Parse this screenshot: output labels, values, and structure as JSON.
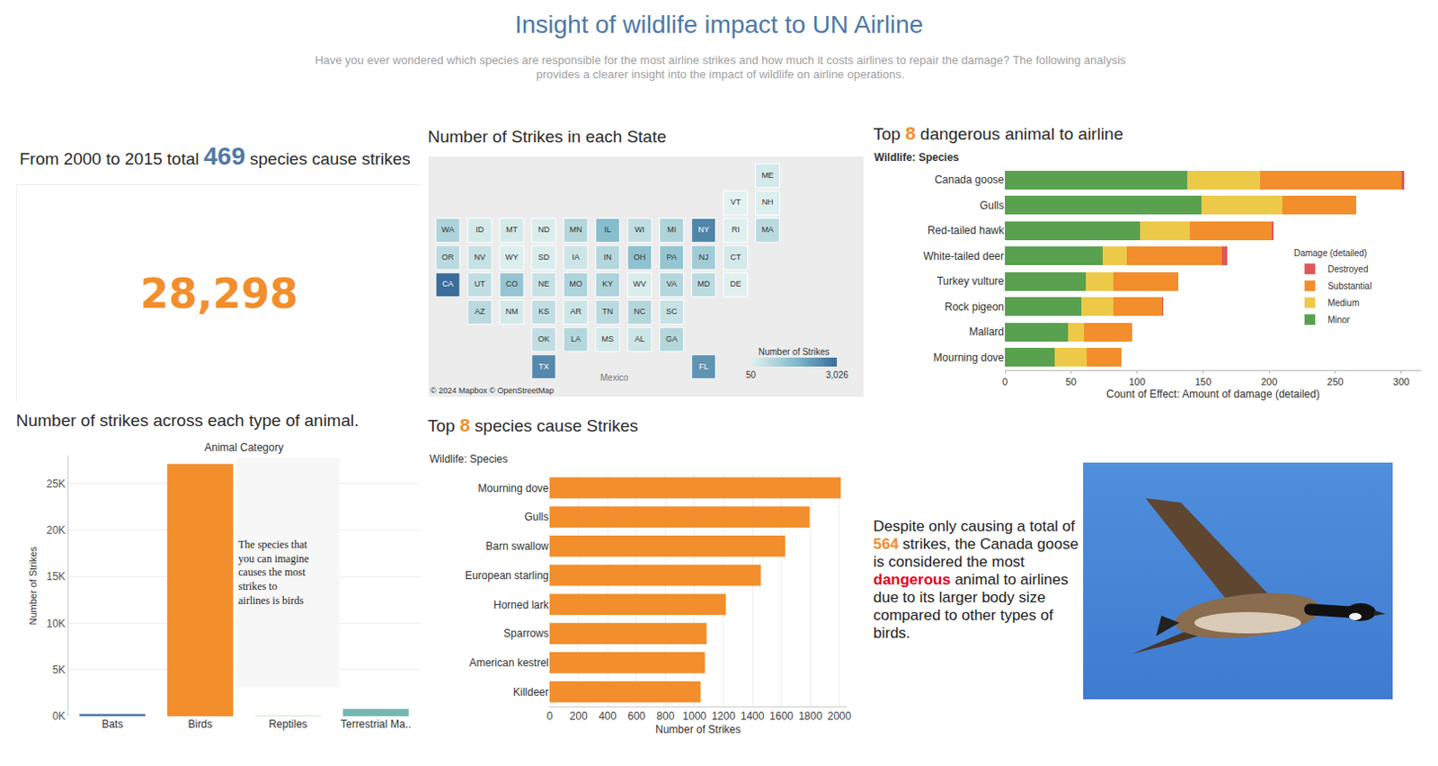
{
  "header": {
    "title": "Insight of wildlife impact to UN Airline",
    "subtitle": "Have you ever wondered which species are responsible for the most airline strikes and how much it costs airlines to repair the damage? The following analysis provides a clearer insight into the impact of wildlife on airline operations."
  },
  "kpi": {
    "title_before": "From 2000 to 2015 total",
    "species": 469,
    "title_after": "species cause strikes",
    "value": {
      "value": 28298,
      "label": "28,298"
    }
  },
  "callout": {
    "text_before": "Despite only causing a total of",
    "strikes": 564,
    "text_middle": "strikes, the Canada goose is considered the most",
    "emphasis": "dangerous",
    "text_after": "animal to airlines due to its larger body size compared to other types of birds."
  },
  "chart_data": [
    {
      "type": "tile_map",
      "title": "Number of Strikes in each State",
      "locations": [
        "ME",
        "VT",
        "NH",
        "WA",
        "ID",
        "MT",
        "ND",
        "MN",
        "IL",
        "WI",
        "MI",
        "NY",
        "RI",
        "MA",
        "OR",
        "NV",
        "WY",
        "SD",
        "IA",
        "IN",
        "OH",
        "PA",
        "NJ",
        "CT",
        "CA",
        "UT",
        "CO",
        "NE",
        "MO",
        "KY",
        "WV",
        "VA",
        "MD",
        "DE",
        "AZ",
        "NM",
        "KS",
        "AR",
        "TN",
        "NC",
        "SC",
        "OK",
        "LA",
        "MS",
        "AL",
        "GA",
        "TX",
        "FL"
      ],
      "values": [
        300,
        50,
        150,
        900,
        300,
        300,
        200,
        800,
        1500,
        600,
        900,
        2600,
        100,
        700,
        700,
        500,
        150,
        200,
        400,
        800,
        1400,
        1300,
        1100,
        300,
        3026,
        600,
        1300,
        500,
        900,
        900,
        200,
        800,
        700,
        100,
        700,
        300,
        600,
        400,
        700,
        800,
        500,
        600,
        800,
        300,
        400,
        800,
        2500,
        2300
      ],
      "colorbar": {
        "title": "Number of Strikes",
        "range": [
          50,
          3026
        ],
        "ticks": [
          50,
          {
            "value": 3026,
            "label": "3,026"
          }
        ]
      },
      "annotations": [
        {
          "text": "© 2024 Mapbox © OpenStreetMap"
        },
        {
          "text": "Mexico"
        }
      ]
    },
    {
      "type": "bar",
      "orientation": "horizontal",
      "stacked": true,
      "title": "Top 8 dangerous animal to airline",
      "category_header": "Wildlife: Species",
      "categories": [
        "Canada goose",
        "Gulls",
        "Red-tailed hawk",
        "White-tailed deer",
        "Turkey vulture",
        "Rock pigeon",
        "Mallard",
        "Mourning dove"
      ],
      "series": [
        {
          "name": "Minor",
          "color": "#59a14f",
          "values": [
            138,
            149,
            102,
            74,
            61,
            58,
            48,
            38
          ]
        },
        {
          "name": "Medium",
          "color": "#edc948",
          "values": [
            55,
            61,
            38,
            18,
            21,
            24,
            12,
            24
          ]
        },
        {
          "name": "Substantial",
          "color": "#f28e2b",
          "values": [
            107,
            56,
            62,
            72,
            49,
            37,
            36,
            26
          ]
        },
        {
          "name": "Destroyed",
          "color": "#e15759",
          "values": [
            2,
            0,
            1,
            4,
            0,
            1,
            0,
            0
          ]
        }
      ],
      "legend_title": "Damage (detailed)",
      "legend": "right",
      "xlabel": "Count of Effect: Amount of damage (detailed)",
      "xlim": [
        0,
        315
      ],
      "xticks": [
        0,
        50,
        100,
        150,
        200,
        250,
        300
      ],
      "grid": false
    },
    {
      "type": "bar",
      "title": "Number of strikes across each type of animal.",
      "xlabel": "Animal Category",
      "ylabel": "Number of Strikes",
      "categories": [
        "Bats",
        "Birds",
        "Reptiles",
        "Terrestrial Ma.."
      ],
      "values": [
        250,
        27100,
        20,
        800
      ],
      "colors": [
        "#4e79a7",
        "#f28e2b",
        "#59a14f",
        "#76b7b2"
      ],
      "ylim": [
        0,
        28000
      ],
      "yticks": [
        {
          "value": 0,
          "label": "0K"
        },
        {
          "value": 5000,
          "label": "5K"
        },
        {
          "value": 10000,
          "label": "10K"
        },
        {
          "value": 15000,
          "label": "15K"
        },
        {
          "value": 20000,
          "label": "20K"
        },
        {
          "value": 25000,
          "label": "25K"
        }
      ],
      "grid": true,
      "annotations": [
        {
          "text": "The species that you can imagine causes the most strikes to airlines is birds",
          "category": "Reptiles"
        }
      ]
    },
    {
      "type": "bar",
      "orientation": "horizontal",
      "title": "Top 8 species cause Strikes",
      "category_header": "Wildlife: Species",
      "categories": [
        "Mourning dove",
        "Gulls",
        "Barn swallow",
        "European starling",
        "Horned lark",
        "Sparrows",
        "American kestrel",
        "Killdeer"
      ],
      "values": [
        2010,
        1795,
        1626,
        1458,
        1217,
        1084,
        1072,
        1042
      ],
      "color": "#f28e2b",
      "xlabel": "Number of Strikes",
      "xlim": [
        0,
        2050
      ],
      "xticks": [
        0,
        200,
        400,
        600,
        800,
        1000,
        1200,
        1400,
        1600,
        1800,
        2000
      ],
      "grid": true
    }
  ]
}
